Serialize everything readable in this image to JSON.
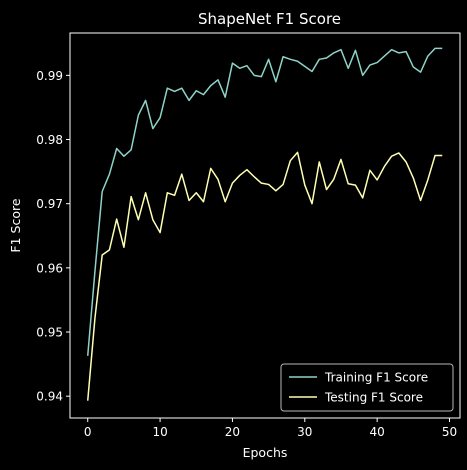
{
  "chart_data": {
    "type": "line",
    "title": "ShapeNet F1 Score",
    "xlabel": "Epochs",
    "ylabel": "F1 Score",
    "xlim": [
      -2.45,
      51.45
    ],
    "ylim": [
      0.9366,
      0.9966
    ],
    "xticks": [
      0,
      10,
      20,
      30,
      40,
      50
    ],
    "xtick_labels": [
      "0",
      "10",
      "20",
      "30",
      "40",
      "50"
    ],
    "yticks": [
      0.94,
      0.95,
      0.96,
      0.97,
      0.98,
      0.99
    ],
    "ytick_labels": [
      "0.94",
      "0.95",
      "0.96",
      "0.97",
      "0.98",
      "0.99"
    ],
    "grid": false,
    "legend_position": "lower right",
    "background": "#000000",
    "foreground": "#ffffff",
    "x": [
      0,
      1,
      2,
      3,
      4,
      5,
      6,
      7,
      8,
      9,
      10,
      11,
      12,
      13,
      14,
      15,
      16,
      17,
      18,
      19,
      20,
      21,
      22,
      23,
      24,
      25,
      26,
      27,
      28,
      29,
      30,
      31,
      32,
      33,
      34,
      35,
      36,
      37,
      38,
      39,
      40,
      41,
      42,
      43,
      44,
      45,
      46,
      47,
      48,
      49
    ],
    "series": [
      {
        "name": "Training F1 Score",
        "color": "#8dd3c7",
        "values": [
          0.9463,
          0.9595,
          0.9719,
          0.9746,
          0.9786,
          0.9774,
          0.9784,
          0.9838,
          0.9861,
          0.9817,
          0.9834,
          0.988,
          0.9875,
          0.988,
          0.9861,
          0.9876,
          0.987,
          0.9884,
          0.9893,
          0.9866,
          0.9919,
          0.9911,
          0.9915,
          0.99,
          0.9898,
          0.9925,
          0.989,
          0.9929,
          0.9925,
          0.9922,
          0.9914,
          0.9906,
          0.9925,
          0.9927,
          0.9935,
          0.994,
          0.9911,
          0.9939,
          0.99,
          0.9916,
          0.992,
          0.993,
          0.994,
          0.9935,
          0.9937,
          0.9913,
          0.9905,
          0.993,
          0.9942,
          0.9942
        ]
      },
      {
        "name": "Testing F1 Score",
        "color": "#ffffb3",
        "values": [
          0.9393,
          0.9522,
          0.962,
          0.9628,
          0.9676,
          0.9632,
          0.9711,
          0.9675,
          0.9717,
          0.9675,
          0.9655,
          0.9717,
          0.9713,
          0.9746,
          0.9705,
          0.9717,
          0.9703,
          0.9755,
          0.9738,
          0.9703,
          0.9732,
          0.9744,
          0.9753,
          0.9742,
          0.9732,
          0.973,
          0.972,
          0.973,
          0.9767,
          0.978,
          0.9729,
          0.97,
          0.9765,
          0.9722,
          0.9738,
          0.9769,
          0.9731,
          0.9729,
          0.9709,
          0.9752,
          0.9737,
          0.9758,
          0.9774,
          0.9779,
          0.9765,
          0.974,
          0.9705,
          0.9737,
          0.9775,
          0.9775
        ]
      }
    ]
  }
}
